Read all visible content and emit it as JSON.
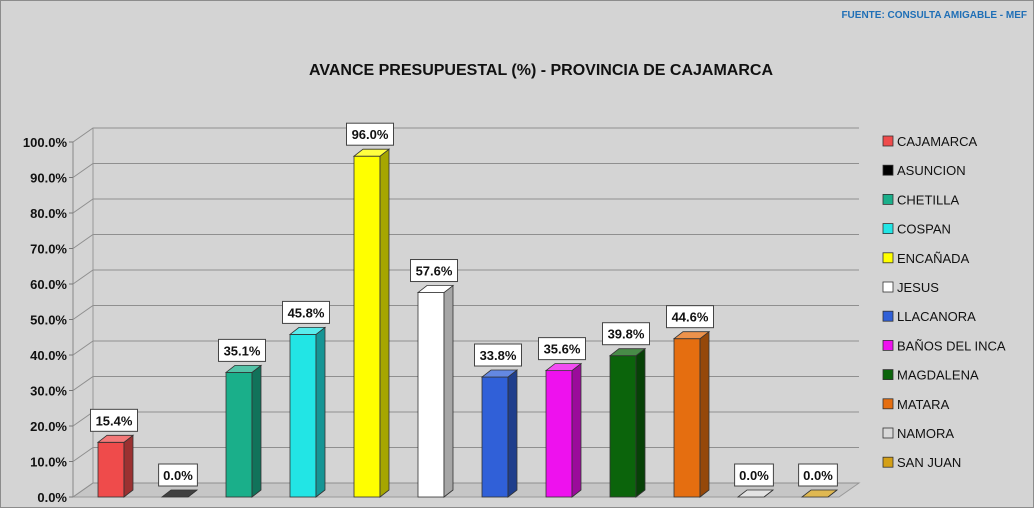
{
  "source_note": "FUENTE: CONSULTA AMIGABLE - MEF",
  "chart_data": {
    "type": "bar",
    "title": "AVANCE PRESUPUESTAL (%) - PROVINCIA DE CAJAMARCA",
    "xlabel": "",
    "ylabel": "",
    "ylim": [
      0,
      100
    ],
    "yticks": [
      "0.0%",
      "10.0%",
      "20.0%",
      "30.0%",
      "40.0%",
      "50.0%",
      "60.0%",
      "70.0%",
      "80.0%",
      "90.0%",
      "100.0%"
    ],
    "grid": true,
    "legend_position": "right",
    "categories": [
      "CAJAMARCA",
      "ASUNCION",
      "CHETILLA",
      "COSPAN",
      "ENCAÑADA",
      "JESUS",
      "LLACANORA",
      "BAÑOS DEL INCA",
      "MAGDALENA",
      "MATARA",
      "NAMORA",
      "SAN JUAN"
    ],
    "values": [
      15.4,
      0.0,
      35.1,
      45.8,
      96.0,
      57.6,
      33.8,
      35.6,
      39.8,
      44.6,
      0.0,
      0.0
    ],
    "data_labels": [
      "15.4%",
      "0.0%",
      "35.1%",
      "45.8%",
      "96.0%",
      "57.6%",
      "33.8%",
      "35.6%",
      "39.8%",
      "44.6%",
      "0.0%",
      "0.0%"
    ],
    "colors": [
      "#ef4b4b",
      "#000000",
      "#1aaf8a",
      "#22e5e5",
      "#ffff00",
      "#ffffff",
      "#3060d8",
      "#ee11ee",
      "#0b640b",
      "#e56e10",
      "#d9d9d9",
      "#d4a017"
    ]
  }
}
